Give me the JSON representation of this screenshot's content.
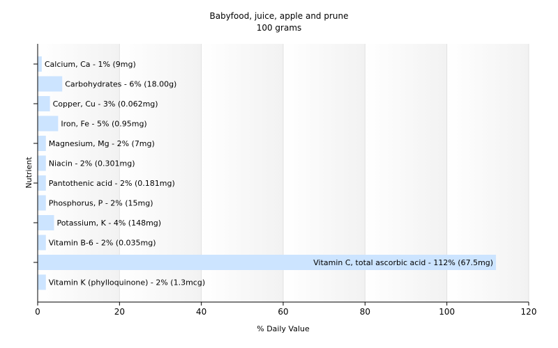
{
  "chart_data": {
    "type": "bar",
    "orientation": "horizontal",
    "title": "Babyfood, juice, apple and prune",
    "subtitle": "100 grams",
    "xlabel": "% Daily Value",
    "ylabel": "Nutrient",
    "xlim": [
      0,
      120
    ],
    "xticks": [
      0,
      20,
      40,
      60,
      80,
      100,
      120
    ],
    "grid": true,
    "bar_color": "#cce4ff",
    "categories": [
      "Calcium, Ca",
      "Carbohydrates",
      "Copper, Cu",
      "Iron, Fe",
      "Magnesium, Mg",
      "Niacin",
      "Pantothenic acid",
      "Phosphorus, P",
      "Potassium, K",
      "Vitamin B-6",
      "Vitamin C, total ascorbic acid",
      "Vitamin K (phylloquinone)"
    ],
    "values": [
      1,
      6,
      3,
      5,
      2,
      2,
      2,
      2,
      4,
      2,
      112,
      2
    ],
    "labels": [
      "Calcium, Ca - 1% (9mg)",
      "Carbohydrates - 6% (18.00g)",
      "Copper, Cu - 3% (0.062mg)",
      "Iron, Fe - 5% (0.95mg)",
      "Magnesium, Mg - 2% (7mg)",
      "Niacin - 2% (0.301mg)",
      "Pantothenic acid - 2% (0.181mg)",
      "Phosphorus, P - 2% (15mg)",
      "Potassium, K - 4% (148mg)",
      "Vitamin B-6 - 2% (0.035mg)",
      "Vitamin C, total ascorbic acid - 112% (67.5mg)",
      "Vitamin K (phylloquinone) - 2% (1.3mcg)"
    ]
  }
}
